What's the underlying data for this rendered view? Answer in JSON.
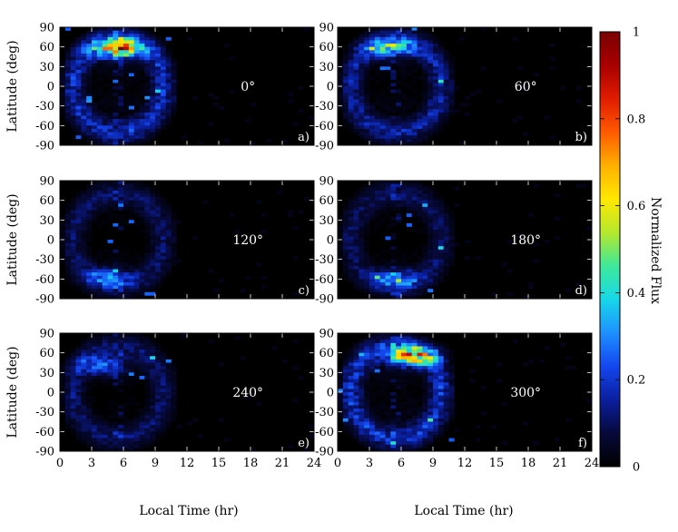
{
  "figure": {
    "x_axis_label": "Local Time (hr)",
    "y_axis_label": "Latitude (deg)",
    "colorbar_label": "Normalized Flux"
  },
  "chart_data": {
    "type": "heatmap",
    "x": {
      "label": "Local Time (hr)",
      "range": [
        0,
        24
      ],
      "ticks": [
        0,
        3,
        6,
        9,
        12,
        15,
        18,
        21,
        24
      ]
    },
    "y": {
      "label": "Latitude (deg)",
      "range": [
        -90,
        90
      ],
      "ticks": [
        90,
        60,
        30,
        0,
        -30,
        -60,
        -90
      ]
    },
    "colorbar": {
      "label": "Normalized Flux",
      "range": [
        0,
        1
      ],
      "ticks": [
        0,
        0.2,
        0.4,
        0.6,
        0.8,
        1
      ],
      "tick_labels": [
        "0",
        "0.2",
        "0.4",
        "0.6",
        "0.8",
        "1"
      ],
      "colormap": [
        "#000000",
        "#07093a",
        "#0a1f9e",
        "#1446f0",
        "#1e90ff",
        "#17d8e8",
        "#3fe89a",
        "#b5e82d",
        "#ffe800",
        "#ffb000",
        "#ff5a00",
        "#e01c00",
        "#a80000",
        "#7a0000"
      ]
    },
    "panels": [
      {
        "letter": "a)",
        "angle": "0°",
        "intensity": 0.95,
        "hot_lat": 58,
        "hot_lt": 5.6,
        "hot_level": 0.62
      },
      {
        "letter": "b)",
        "angle": "60°",
        "intensity": 0.8,
        "hot_lat": 58,
        "hot_lt": 5.0,
        "hot_level": 0.32
      },
      {
        "letter": "c)",
        "angle": "120°",
        "intensity": 0.55,
        "hot_lat": -58,
        "hot_lt": 4.5,
        "hot_level": 0.22
      },
      {
        "letter": "d)",
        "angle": "180°",
        "intensity": 0.55,
        "hot_lat": -60,
        "hot_lt": 5.5,
        "hot_level": 0.25
      },
      {
        "letter": "e)",
        "angle": "240°",
        "intensity": 0.6,
        "hot_lat": 40,
        "hot_lt": 4.0,
        "hot_level": 0.22
      },
      {
        "letter": "f)",
        "angle": "300°",
        "intensity": 1.0,
        "hot_lat": 55,
        "hot_lt": 7.0,
        "hot_level": 0.55
      }
    ]
  }
}
